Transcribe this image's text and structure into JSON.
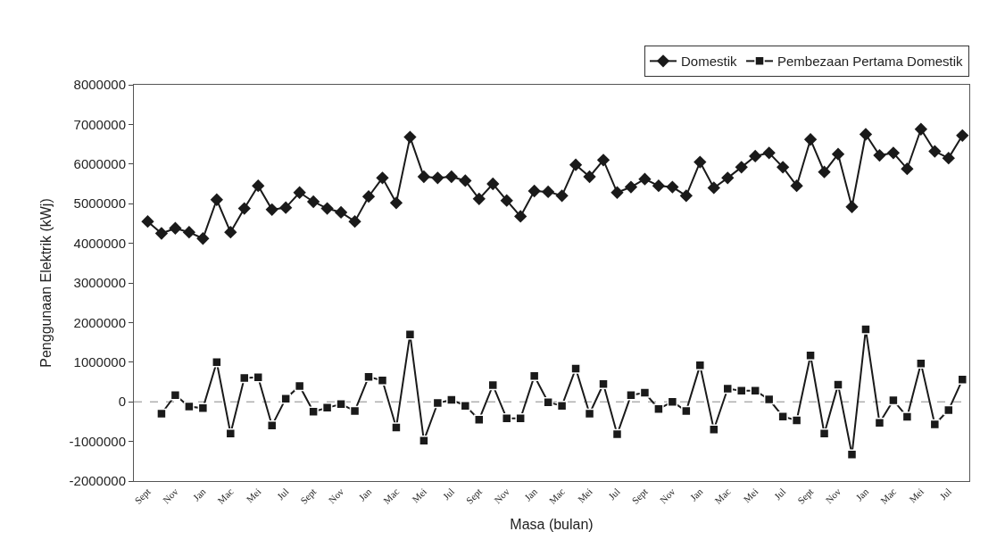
{
  "chart_data": {
    "type": "line",
    "xlabel": "Masa (bulan)",
    "ylabel": "Penggunaan Elektrik (kWj)",
    "categories": [
      "Sept",
      null,
      "Nov",
      null,
      "Jan",
      null,
      "Mac",
      null,
      "Mei",
      null,
      "Jul",
      null,
      "Sept",
      null,
      "Nov",
      null,
      "Jan",
      null,
      "Mac",
      null,
      "Mei",
      null,
      "Jul",
      null,
      "Sept",
      null,
      "Nov",
      null,
      "Jan",
      null,
      "Mac",
      null,
      "Mei",
      null,
      "Jul",
      null,
      "Sept",
      null,
      "Nov",
      null,
      "Jan",
      null,
      "Mac",
      null,
      "Mei",
      null,
      "Jul",
      null,
      "Sept",
      null,
      "Nov",
      null,
      "Jan",
      null,
      "Mac",
      null,
      "Mei",
      null,
      "Jul",
      null
    ],
    "series": [
      {
        "name": "Domestik",
        "color": "#1a1a1a",
        "marker": "diamond",
        "values": [
          4550000,
          4250000,
          4380000,
          4280000,
          4120000,
          5100000,
          4280000,
          4880000,
          5450000,
          4850000,
          4900000,
          5280000,
          5050000,
          4880000,
          4780000,
          4550000,
          5180000,
          5650000,
          5020000,
          6680000,
          5680000,
          5650000,
          5680000,
          5580000,
          5120000,
          5500000,
          5080000,
          4680000,
          5320000,
          5300000,
          5200000,
          5980000,
          5680000,
          6100000,
          5280000,
          5420000,
          5620000,
          5450000,
          5420000,
          5200000,
          6050000,
          5400000,
          5650000,
          5920000,
          6200000,
          6280000,
          5920000,
          5450000,
          6620000,
          5800000,
          6250000,
          4920000,
          6750000,
          6220000,
          6280000,
          5880000,
          6880000,
          6320000,
          6150000,
          6720000
        ]
      },
      {
        "name": "Pembezaan Pertama Domestik",
        "color": "#1a1a1a",
        "marker": "square",
        "values": [
          null,
          -300000,
          170000,
          -120000,
          -160000,
          1000000,
          -800000,
          600000,
          620000,
          -600000,
          80000,
          400000,
          -250000,
          -150000,
          -60000,
          -230000,
          630000,
          540000,
          -650000,
          1700000,
          -980000,
          -30000,
          50000,
          -100000,
          -450000,
          420000,
          -420000,
          -420000,
          650000,
          -10000,
          -100000,
          840000,
          -300000,
          450000,
          -820000,
          170000,
          230000,
          -180000,
          0,
          -230000,
          920000,
          -700000,
          330000,
          280000,
          280000,
          60000,
          -370000,
          -470000,
          1170000,
          -800000,
          430000,
          -1330000,
          1830000,
          -530000,
          40000,
          -380000,
          970000,
          -570000,
          -210000,
          560000
        ]
      }
    ],
    "ylim": [
      -2000000,
      8000000
    ],
    "yticks": [
      -2000000,
      -1000000,
      0,
      1000000,
      2000000,
      3000000,
      4000000,
      5000000,
      6000000,
      7000000,
      8000000
    ],
    "ref_lines": [
      {
        "axis": "y",
        "value": 0,
        "color": "#888888",
        "line_style": "dashed"
      }
    ],
    "grid": false,
    "legend": "top right",
    "line_style": "solid"
  }
}
